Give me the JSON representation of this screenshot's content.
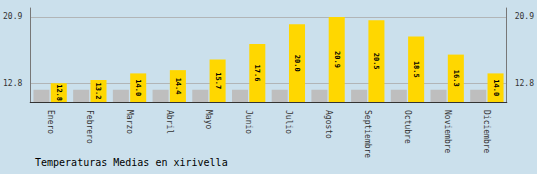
{
  "chart_data": {
    "type": "bar",
    "title": "Temperaturas Medias en xirivella",
    "categories": [
      "Enero",
      "Febrero",
      "Marzo",
      "Abril",
      "Mayo",
      "Junio",
      "Julio",
      "Agosto",
      "Septiembre",
      "Octubre",
      "Noviembre",
      "Diciembre"
    ],
    "series": [
      {
        "color": "#BEBEBE",
        "values": [
          12.0,
          12.0,
          12.0,
          12.0,
          12.0,
          12.0,
          12.0,
          12.0,
          12.0,
          12.0,
          12.0,
          12.0
        ]
      },
      {
        "color": "#FFD700",
        "values": [
          12.8,
          13.2,
          14.0,
          14.4,
          15.7,
          17.6,
          20.0,
          20.9,
          20.5,
          18.5,
          16.3,
          14.0
        ],
        "value_labels": [
          "12.8",
          "13.2",
          "14.0",
          "14.4",
          "15.7",
          "17.6",
          "20.0",
          "20.9",
          "20.5",
          "18.5",
          "16.3",
          "14.0"
        ],
        "data_labels": true
      }
    ],
    "ylim": [
      10.5,
      22.0
    ],
    "yticks": [
      12.8,
      20.9
    ],
    "y2lim": [
      10.5,
      22.0
    ],
    "y2ticks": [
      12.8,
      20.9
    ],
    "grid": true
  }
}
